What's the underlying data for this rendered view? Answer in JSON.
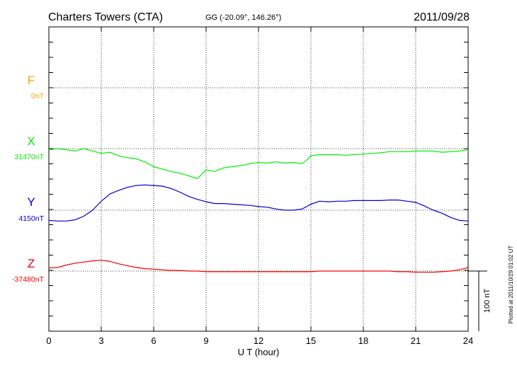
{
  "header": {
    "station": "Charters Towers (CTA)",
    "coords": "GG (-20.09°, 146.26°)",
    "date": "2011/09/28"
  },
  "side_note": "Plotted at 2011/10/29 01:02 UT",
  "scale_label": "100 nT",
  "chart_data": {
    "type": "line",
    "xlabel": "U T (hour)",
    "xlim": [
      0,
      24
    ],
    "x_ticks": [
      "0",
      "3",
      "6",
      "9",
      "12",
      "15",
      "18",
      "21",
      "24"
    ],
    "grid": true,
    "series": [
      {
        "name": "F",
        "baseline_label": "0nT",
        "color": "#ffa500",
        "x": [],
        "values": []
      },
      {
        "name": "X",
        "baseline_label": "31470nT",
        "color": "#00ee00",
        "baseline": 31470,
        "x": [
          0,
          0.5,
          1,
          1.5,
          2,
          2.5,
          3,
          3.5,
          4,
          4.5,
          5,
          5.5,
          6,
          6.5,
          7,
          7.5,
          8,
          8.5,
          9,
          9.5,
          10,
          10.5,
          11,
          11.5,
          12,
          12.5,
          13,
          13.5,
          14,
          14.5,
          14.8,
          15,
          15.5,
          16,
          16.5,
          17,
          17.5,
          18,
          18.5,
          19,
          19.5,
          20,
          20.5,
          21,
          21.5,
          22,
          22.5,
          23,
          23.5,
          24
        ],
        "values": [
          31468,
          31470,
          31468,
          31466,
          31470,
          31466,
          31462,
          31464,
          31458,
          31455,
          31453,
          31448,
          31440,
          31436,
          31432,
          31429,
          31425,
          31420,
          31435,
          31432,
          31438,
          31440,
          31442,
          31445,
          31447,
          31446,
          31448,
          31446,
          31447,
          31445,
          31452,
          31458,
          31460,
          31460,
          31460,
          31459,
          31460,
          31461,
          31462,
          31463,
          31465,
          31465,
          31465,
          31466,
          31466,
          31466,
          31464,
          31465,
          31466,
          31468
        ]
      },
      {
        "name": "Y",
        "baseline_label": "4150nT",
        "color": "#0000cc",
        "baseline": 4150,
        "x": [
          0,
          0.5,
          1,
          1.5,
          2,
          2.5,
          3,
          3.5,
          4,
          4.5,
          5,
          5.5,
          6,
          6.5,
          7,
          7.5,
          8,
          8.5,
          9,
          9.5,
          10,
          10.5,
          11,
          11.5,
          12,
          12.5,
          13,
          13.5,
          14,
          14.5,
          15,
          15.5,
          16,
          16.5,
          17,
          17.5,
          18,
          18.5,
          19,
          19.5,
          20,
          20.5,
          21,
          21.5,
          22,
          22.5,
          23,
          23.5,
          24
        ],
        "values": [
          4133,
          4132,
          4132,
          4134,
          4140,
          4150,
          4165,
          4177,
          4183,
          4188,
          4191,
          4192,
          4191,
          4190,
          4186,
          4180,
          4173,
          4168,
          4164,
          4161,
          4161,
          4160,
          4159,
          4158,
          4156,
          4155,
          4152,
          4150,
          4150,
          4152,
          4160,
          4165,
          4164,
          4165,
          4165,
          4166,
          4166,
          4166,
          4166,
          4167,
          4167,
          4165,
          4163,
          4157,
          4150,
          4145,
          4138,
          4133,
          4132
        ]
      },
      {
        "name": "Z",
        "baseline_label": "-37480nT",
        "color": "#ee0000",
        "baseline": -37480,
        "x": [
          0,
          0.5,
          1,
          1.5,
          2,
          2.5,
          3,
          3.5,
          4,
          4.5,
          5,
          5.5,
          6,
          6.5,
          7,
          7.5,
          8,
          8.5,
          9,
          9.5,
          10,
          10.5,
          11,
          11.5,
          12,
          12.5,
          13,
          13.5,
          14,
          14.5,
          15,
          15.5,
          16,
          16.5,
          17,
          17.5,
          18,
          18.5,
          19,
          19.5,
          20,
          20.5,
          21,
          21.5,
          22,
          22.5,
          23,
          23.5,
          24
        ],
        "values": [
          -37475,
          -37474,
          -37470,
          -37467,
          -37465,
          -37463,
          -37462,
          -37464,
          -37468,
          -37471,
          -37474,
          -37476,
          -37477,
          -37478,
          -37479,
          -37479,
          -37480,
          -37480,
          -37481,
          -37481,
          -37481,
          -37481,
          -37481,
          -37481,
          -37481,
          -37481,
          -37481,
          -37481,
          -37481,
          -37481,
          -37481,
          -37480,
          -37480,
          -37480,
          -37480,
          -37480,
          -37480,
          -37480,
          -37480,
          -37480,
          -37481,
          -37481,
          -37482,
          -37482,
          -37482,
          -37481,
          -37480,
          -37478,
          -37474
        ]
      }
    ]
  }
}
